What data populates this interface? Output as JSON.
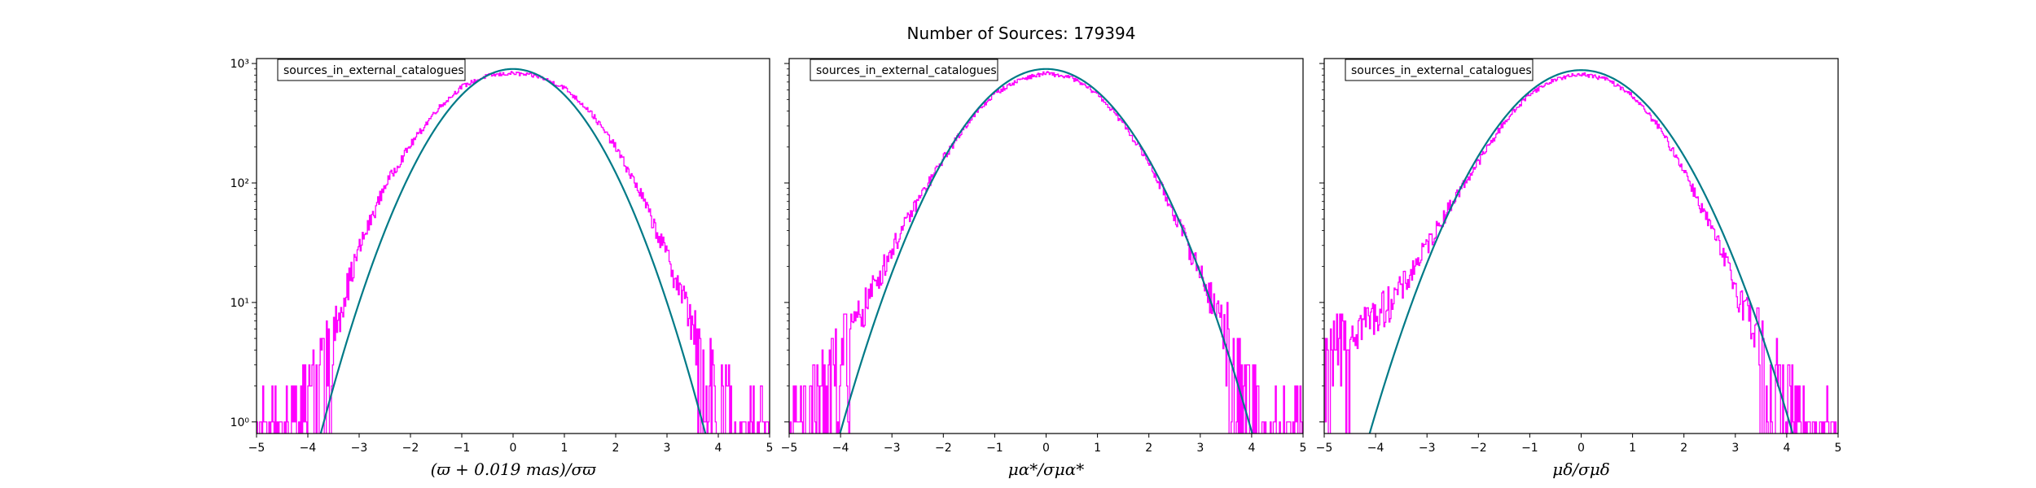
{
  "figure": {
    "title": "Number of Sources: 179394"
  },
  "colors": {
    "histogram": "#ff00ff",
    "gaussian": "#007a87",
    "frame": "#000000"
  },
  "chart_data": [
    {
      "type": "line",
      "legend": "sources_in_external_catalogues",
      "legend_position": "top-left",
      "xlabel": "(ϖ + 0.019 mas)/σϖ",
      "xlim": [
        -5,
        5
      ],
      "ylim": [
        0.8,
        1100
      ],
      "yscale": "log",
      "xticks": [
        "−5",
        "−4",
        "−3",
        "−2",
        "−1",
        "0",
        "1",
        "2",
        "3",
        "4",
        "5"
      ],
      "yticks": [
        "10⁰",
        "10¹",
        "10²",
        "10³"
      ],
      "ytick_values": [
        1,
        10,
        100,
        1000
      ],
      "series": [
        {
          "kind": "gaussian",
          "amplitude": 900,
          "mean": 0,
          "sigma": 1
        },
        {
          "kind": "histogram",
          "x": [
            -5,
            -4.5,
            -4,
            -3.5,
            -3,
            -2.5,
            -2,
            -1.5,
            -1,
            -0.5,
            0,
            0.5,
            1,
            1.5,
            2,
            2.5,
            3,
            3.5,
            4,
            4.5,
            5
          ],
          "y": [
            1,
            1,
            2,
            6,
            28,
            95,
            208,
            405,
            640,
            790,
            830,
            780,
            630,
            400,
            200,
            80,
            25,
            7,
            2,
            1,
            1
          ]
        }
      ]
    },
    {
      "type": "line",
      "legend": "sources_in_external_catalogues",
      "legend_position": "top-left",
      "xlabel": "μα*/σμα*",
      "xlim": [
        -5,
        5
      ],
      "ylim": [
        0.8,
        1100
      ],
      "yscale": "log",
      "xticks": [
        "−5",
        "−4",
        "−3",
        "−2",
        "−1",
        "0",
        "1",
        "2",
        "3",
        "4",
        "5"
      ],
      "yticks": [],
      "ytick_values": [
        1,
        10,
        100,
        1000
      ],
      "series": [
        {
          "kind": "gaussian",
          "amplitude": 900,
          "mean": 0,
          "sigma": 1.07
        },
        {
          "kind": "histogram",
          "x": [
            -5,
            -4.5,
            -4,
            -3.5,
            -3,
            -2.5,
            -2,
            -1.5,
            -1,
            -0.5,
            0,
            0.5,
            1,
            1.5,
            2,
            2.5,
            3,
            3.5,
            4,
            4.5,
            5
          ],
          "y": [
            1,
            2,
            4,
            10,
            28,
            70,
            160,
            330,
            560,
            740,
            830,
            760,
            560,
            320,
            150,
            55,
            18,
            6,
            2,
            1,
            1
          ]
        }
      ]
    },
    {
      "type": "line",
      "legend": "sources_in_external_catalogues",
      "legend_position": "top-left",
      "xlabel": "μδ/σμδ",
      "xlim": [
        -5,
        5
      ],
      "ylim": [
        0.8,
        1100
      ],
      "yscale": "log",
      "xticks": [
        "−5",
        "−4",
        "−3",
        "−2",
        "−1",
        "0",
        "1",
        "2",
        "3",
        "4",
        "5"
      ],
      "yticks": [],
      "ytick_values": [
        1,
        10,
        100,
        1000
      ],
      "series": [
        {
          "kind": "gaussian",
          "amplitude": 880,
          "mean": 0,
          "sigma": 1.1
        },
        {
          "kind": "histogram",
          "x": [
            -5,
            -4.5,
            -4,
            -3.5,
            -3,
            -2.5,
            -2,
            -1.5,
            -1,
            -0.5,
            0,
            0.5,
            1,
            1.5,
            2,
            2.5,
            3,
            3.5,
            4,
            4.5,
            5
          ],
          "y": [
            3,
            6,
            8,
            13,
            30,
            70,
            150,
            320,
            560,
            740,
            820,
            740,
            540,
            300,
            130,
            45,
            14,
            5,
            2,
            1,
            1
          ]
        }
      ]
    }
  ]
}
